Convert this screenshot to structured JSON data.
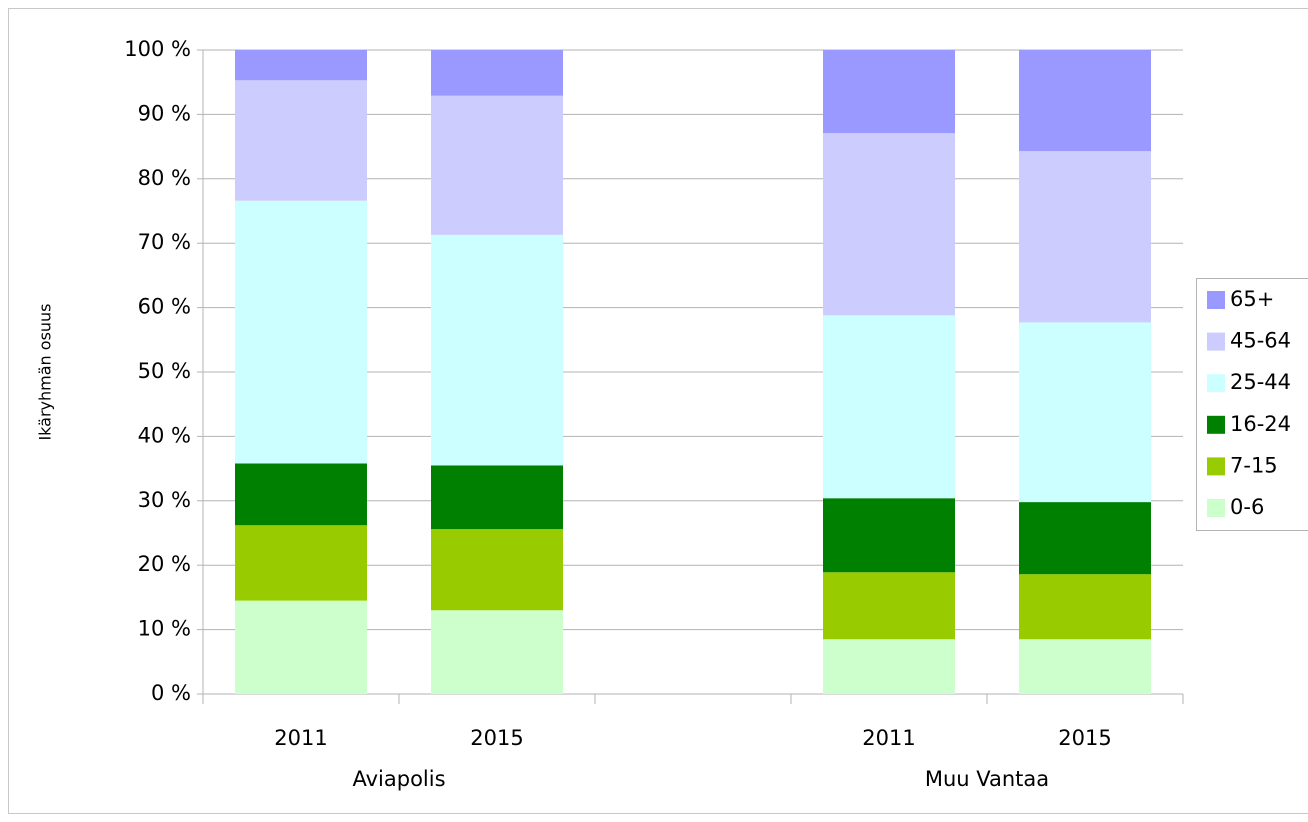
{
  "chart_data": {
    "type": "stacked_bar",
    "y_label": "Ikäryhmän osuus",
    "categories": [
      "2011",
      "2015",
      null,
      "2011",
      "2015"
    ],
    "groups": [
      "Aviapolis",
      "Muu Vantaa"
    ],
    "series": [
      {
        "name": "0-6",
        "color": "#ccffcc",
        "values": [
          14.5,
          13.0,
          null,
          8.5,
          8.5
        ]
      },
      {
        "name": "7-15",
        "color": "#99cc00",
        "values": [
          11.7,
          12.6,
          null,
          10.4,
          10.1
        ]
      },
      {
        "name": "16-24",
        "color": "#008000",
        "values": [
          9.6,
          9.9,
          null,
          11.5,
          11.2
        ]
      },
      {
        "name": "25-44",
        "color": "#ccffff",
        "values": [
          40.8,
          35.8,
          null,
          28.4,
          27.9
        ]
      },
      {
        "name": "45-64",
        "color": "#ccccff",
        "values": [
          18.7,
          21.6,
          null,
          28.3,
          26.6
        ]
      },
      {
        "name": "65+",
        "color": "#9999ff",
        "values": [
          4.7,
          7.1,
          null,
          12.9,
          15.7
        ]
      }
    ],
    "ylim": [
      0,
      100
    ],
    "yticks": [
      {
        "value": 0,
        "label": "0 %"
      },
      {
        "value": 10,
        "label": "10 %"
      },
      {
        "value": 20,
        "label": "20 %"
      },
      {
        "value": 30,
        "label": "30 %"
      },
      {
        "value": 40,
        "label": "40 %"
      },
      {
        "value": 50,
        "label": "50 %"
      },
      {
        "value": 60,
        "label": "60 %"
      },
      {
        "value": 70,
        "label": "70 %"
      },
      {
        "value": 80,
        "label": "80 %"
      },
      {
        "value": 90,
        "label": "90 %"
      },
      {
        "value": 100,
        "label": "100 %"
      }
    ],
    "grid": true,
    "legend": "right"
  }
}
